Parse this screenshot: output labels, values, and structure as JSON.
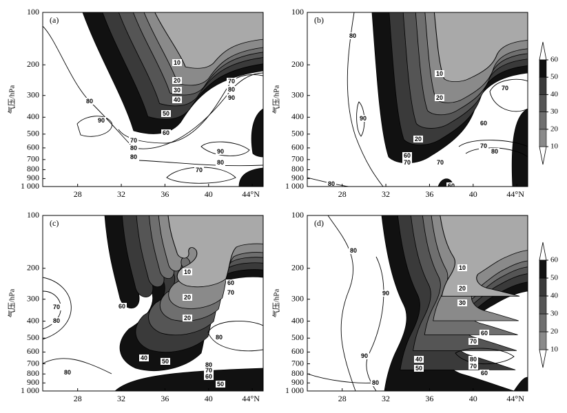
{
  "colorbar": {
    "levels": [
      10,
      20,
      30,
      40,
      50,
      60
    ],
    "band_colors": [
      "#8a8a8a",
      "#6f6f6f",
      "#555555",
      "#3a3a3a",
      "#111111"
    ],
    "lowest_fill": "#a9a9a9",
    "under_color": "#ffffff",
    "over_color": "#ffffff"
  },
  "chart_data": [
    {
      "type": "contour",
      "panel_label": "(a)",
      "ylabel": "气压/hPa",
      "ylog": true,
      "xlim": [
        24.8,
        45
      ],
      "ylim": [
        100,
        1000
      ],
      "xticks": [
        28,
        32,
        36,
        40,
        {
          "value": 44,
          "label": "44°N"
        }
      ],
      "yticks": [
        100,
        200,
        300,
        400,
        500,
        600,
        700,
        800,
        900,
        {
          "value": 1000,
          "label": "1 000"
        }
      ],
      "contour_labels": [
        10,
        20,
        30,
        40,
        50,
        60,
        80,
        90,
        70,
        80,
        80,
        70,
        80,
        90,
        90,
        80,
        70
      ]
    },
    {
      "type": "contour",
      "panel_label": "(b)",
      "ylabel": "气压/hPa",
      "ylog": true,
      "xlim": [
        24.8,
        45
      ],
      "ylim": [
        100,
        1000
      ],
      "xticks": [
        28,
        32,
        36,
        40,
        {
          "value": 44,
          "label": "44°N"
        }
      ],
      "yticks": [
        100,
        200,
        300,
        400,
        500,
        600,
        700,
        800,
        900,
        {
          "value": 1000,
          "label": "1 000"
        }
      ],
      "contour_labels": [
        80,
        10,
        20,
        70,
        90,
        60,
        20,
        60,
        70,
        70,
        80,
        70,
        80,
        60
      ]
    },
    {
      "type": "contour",
      "panel_label": "(c)",
      "ylabel": "气压/hPa",
      "ylog": true,
      "xlim": [
        24.8,
        45
      ],
      "ylim": [
        100,
        1000
      ],
      "xticks": [
        28,
        32,
        36,
        40,
        {
          "value": 44,
          "label": "44°N"
        }
      ],
      "yticks": [
        100,
        200,
        300,
        400,
        500,
        600,
        700,
        800,
        900,
        {
          "value": 1000,
          "label": "1 000"
        }
      ],
      "contour_labels": [
        10,
        20,
        20,
        60,
        70,
        80,
        60,
        70,
        80,
        40,
        50,
        80,
        70,
        60,
        80,
        50
      ]
    },
    {
      "type": "contour",
      "panel_label": "(d)",
      "ylabel": "气压/hPa",
      "ylog": true,
      "xlim": [
        24.8,
        45
      ],
      "ylim": [
        100,
        1000
      ],
      "xticks": [
        28,
        32,
        36,
        40,
        {
          "value": 44,
          "label": "44°N"
        }
      ],
      "yticks": [
        100,
        200,
        300,
        400,
        500,
        600,
        700,
        800,
        900,
        {
          "value": 1000,
          "label": "1 000"
        }
      ],
      "contour_labels": [
        80,
        10,
        20,
        30,
        90,
        60,
        70,
        90,
        40,
        50,
        80,
        70,
        60,
        80
      ]
    }
  ]
}
